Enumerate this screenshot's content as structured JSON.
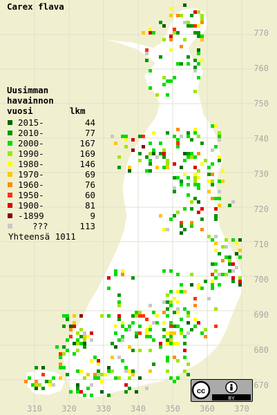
{
  "title": "Carex flava",
  "legend": {
    "heading": [
      "Uusimman",
      "havainnon",
      "vuosi"
    ],
    "count_header": "lkm",
    "items": [
      {
        "label": "2015-",
        "count": "44",
        "color": "#006400"
      },
      {
        "label": "2010-",
        "count": "77",
        "color": "#009600"
      },
      {
        "label": "2000-",
        "count": "167",
        "color": "#00dc00"
      },
      {
        "label": "1990-",
        "count": "169",
        "color": "#a0e600"
      },
      {
        "label": "1980-",
        "count": "146",
        "color": "#ffff00"
      },
      {
        "label": "1970-",
        "count": "69",
        "color": "#ffc800"
      },
      {
        "label": "1960-",
        "count": "76",
        "color": "#ff8c00"
      },
      {
        "label": "1950-",
        "count": "60",
        "color": "#ff3200"
      },
      {
        "label": "1900-",
        "count": "81",
        "color": "#dc0000"
      },
      {
        "label": "-1899",
        "count": "9",
        "color": "#8c0000"
      },
      {
        "label": "???",
        "count": "113",
        "color": "#c8c8c8"
      }
    ],
    "total_label": "Yhteensä 1011"
  },
  "axes": {
    "y_ticks": [
      "770",
      "760",
      "750",
      "740",
      "730",
      "720",
      "710",
      "700",
      "690",
      "680",
      "670"
    ],
    "x_ticks": [
      "310",
      "320",
      "330",
      "340",
      "350",
      "360",
      "370"
    ]
  },
  "license_badge": {
    "icons": [
      "cc-icon",
      "by-icon"
    ],
    "text": "BY"
  },
  "colors": {
    "background": "#f0f0d0",
    "land": "#ffffff",
    "grid": "#c8c8c8"
  }
}
